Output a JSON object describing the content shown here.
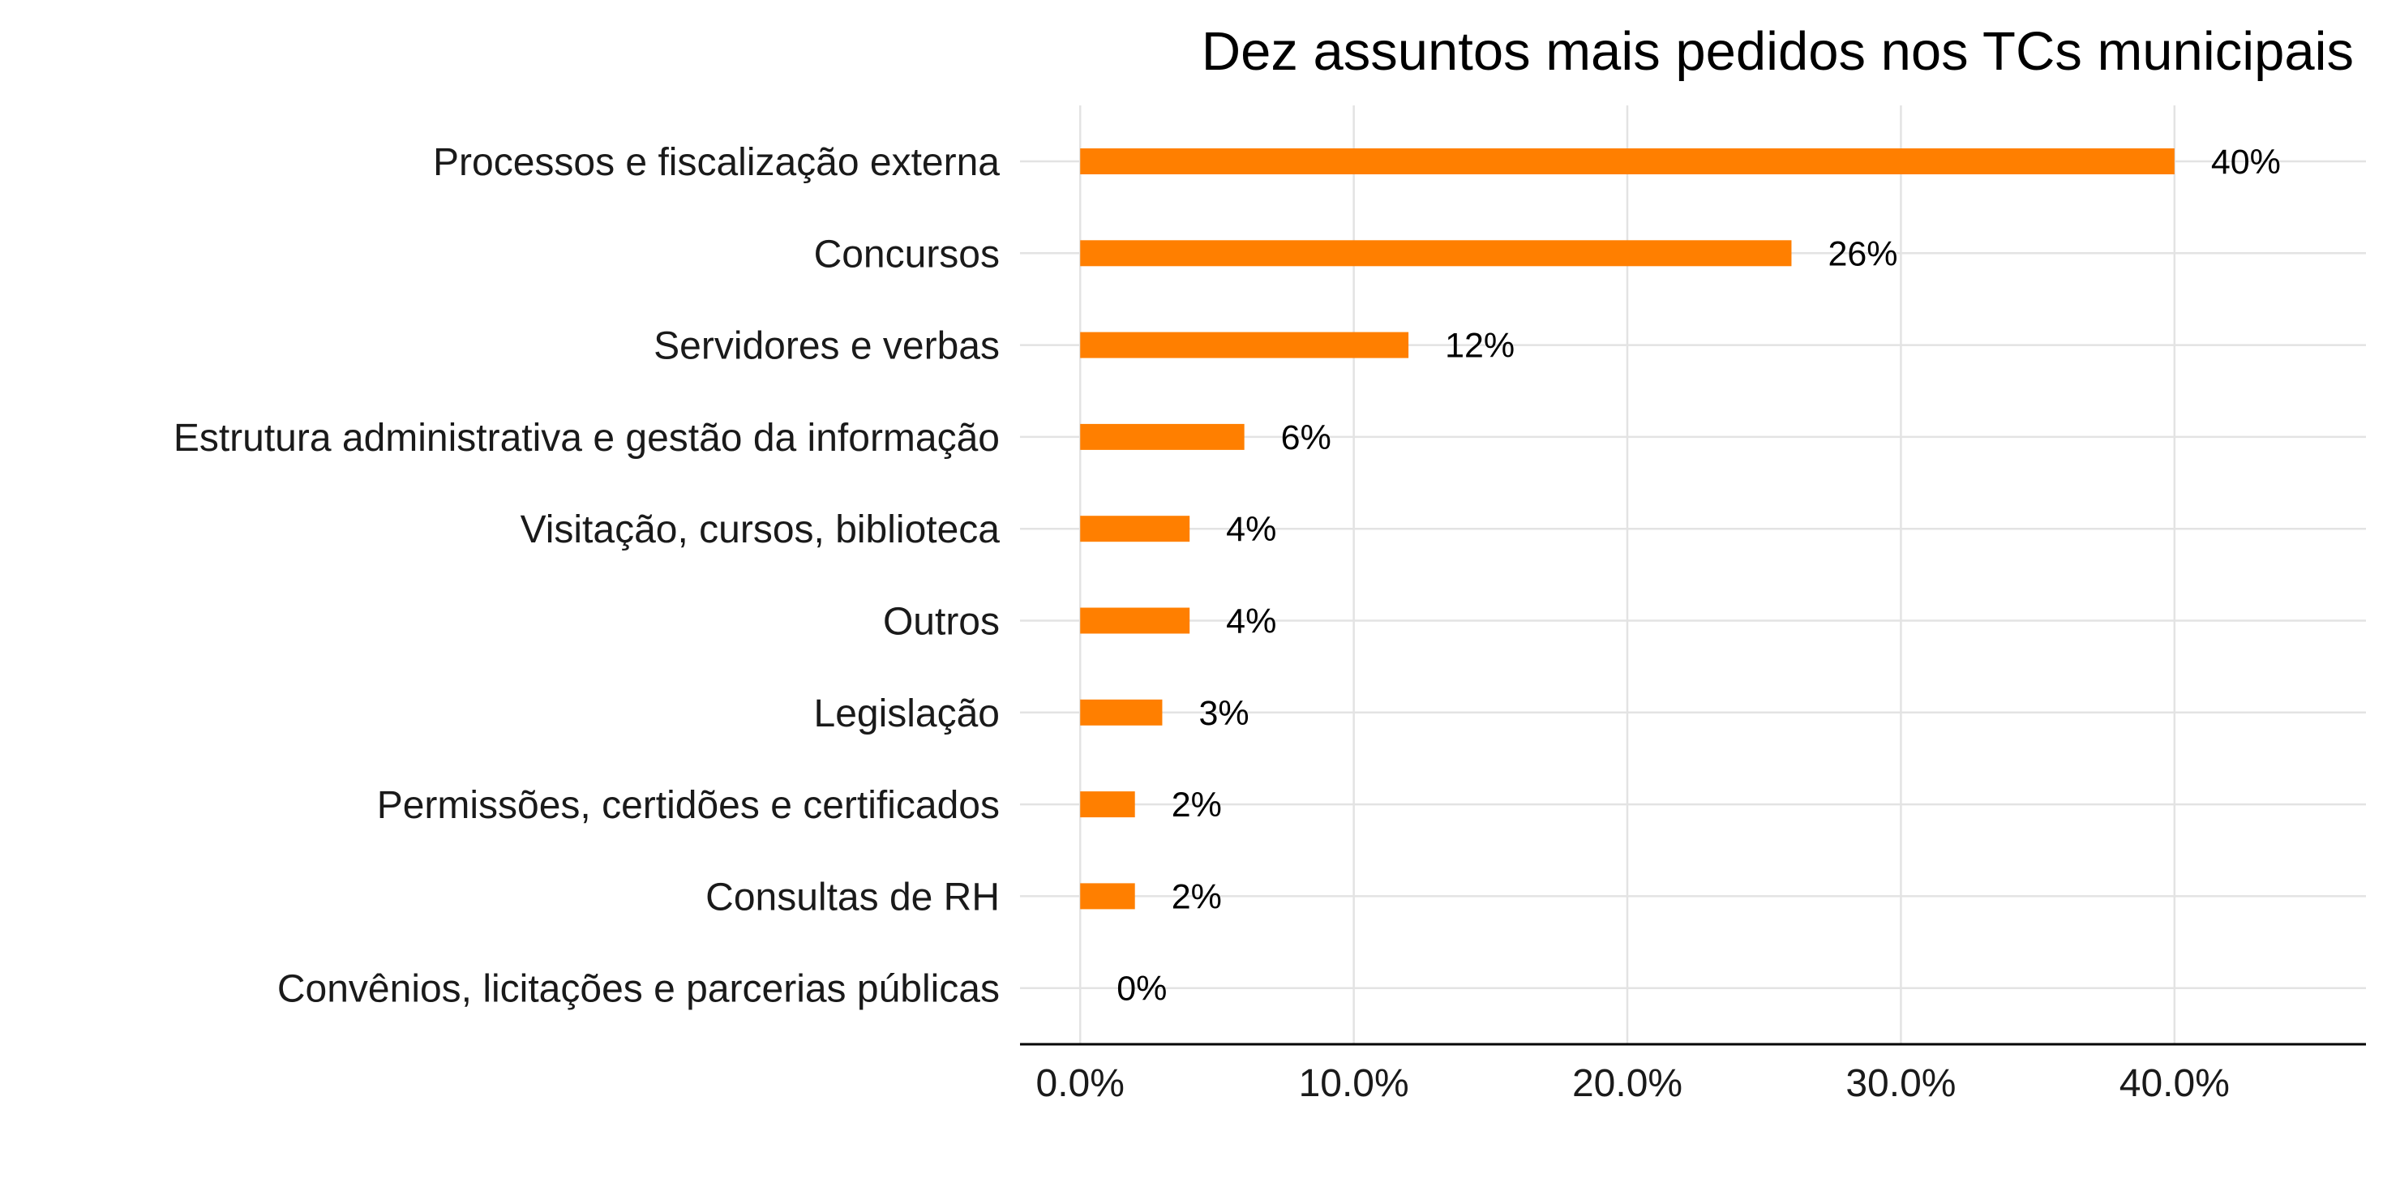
{
  "colors": {
    "bar": "#FF7F00",
    "grid": "#E3E3E3",
    "axis": "#000000",
    "text": "#1A1A1A"
  },
  "chart_data": {
    "type": "bar",
    "orientation": "horizontal",
    "title": "Dez assuntos mais pedidos nos TCs municipais",
    "xlabel": "",
    "ylabel": "",
    "categories": [
      "Processos e fiscalização externa",
      "Concursos",
      "Servidores e verbas",
      "Estrutura administrativa e gestão da informação",
      "Visitação, cursos, biblioteca",
      "Outros",
      "Legislação",
      "Permissões, certidões e certificados",
      "Consultas de RH",
      "Convênios, licitações e parcerias públicas"
    ],
    "values": [
      40,
      26,
      12,
      6,
      4,
      4,
      3,
      2,
      2,
      0
    ],
    "data_labels": [
      "40%",
      "26%",
      "12%",
      "6%",
      "4%",
      "4%",
      "3%",
      "2%",
      "2%",
      "0%"
    ],
    "xlim": [
      -2.2,
      47
    ],
    "xticks": [
      0,
      10,
      20,
      30,
      40
    ],
    "xtick_labels": [
      "0.0%",
      "10.0%",
      "20.0%",
      "30.0%",
      "40.0%"
    ],
    "grid": true,
    "legend": "none"
  }
}
